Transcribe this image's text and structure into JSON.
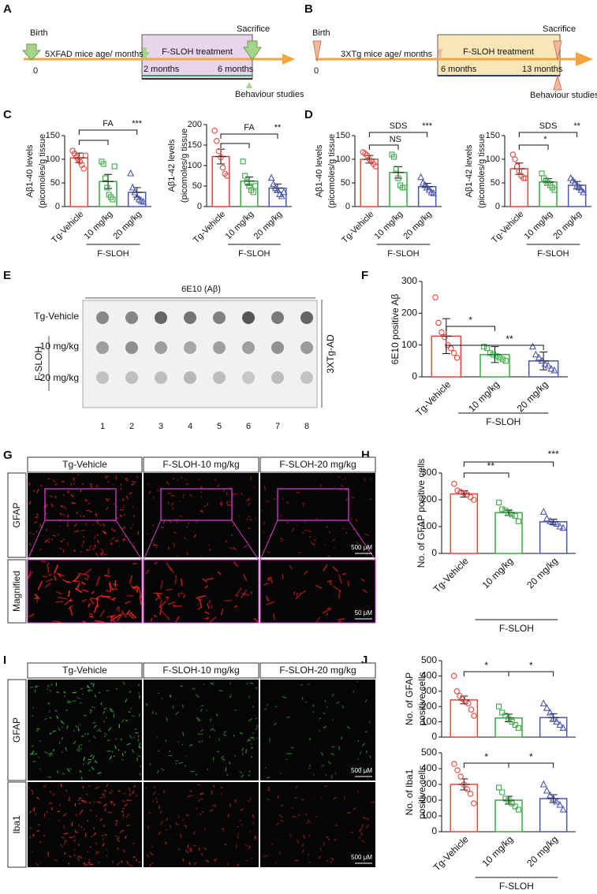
{
  "panel_labels": [
    "A",
    "B",
    "C",
    "D",
    "E",
    "F",
    "G",
    "H",
    "I",
    "J"
  ],
  "timeline_a": {
    "birth": "Birth",
    "axis_label": "5XFAD mice age/ months",
    "zero": "0",
    "treatment": "F-SLOH treatment",
    "start": "2 months",
    "end": "6 months",
    "sacrifice": "Sacrifice",
    "behaviour": "Behaviour studies"
  },
  "timeline_b": {
    "birth": "Birth",
    "axis_label": "3XTg mice age/ months",
    "zero": "0",
    "treatment": "F-SLOH treatment",
    "start": "6 months",
    "end": "13 months",
    "sacrifice": "Sacrifice",
    "behaviour": "Behaviour studies"
  },
  "dot_blot": {
    "antibody": "6E10 (Aβ)",
    "rows": [
      "Tg-Vehicle",
      "10 mg/kg",
      "20 mg/kg"
    ],
    "group": "F-SLOH",
    "model": "3XTg-AD",
    "lanes": [
      "1",
      "2",
      "3",
      "4",
      "5",
      "6",
      "7",
      "8"
    ]
  },
  "micrographs_g": {
    "columns": [
      "Tg-Vehicle",
      "F-SLOH-10 mg/kg",
      "F-SLOH-20 mg/kg"
    ],
    "rows": [
      "GFAP",
      "Magnified"
    ],
    "scale_bars": [
      "500 μM",
      "50 μM"
    ]
  },
  "micrographs_i": {
    "columns": [
      "Tg-Vehicle",
      "F-SLOH-10 mg/kg",
      "F-SLOH-20 mg/kg"
    ],
    "rows": [
      "GFAP",
      "Iba1"
    ],
    "scale_bars": [
      "500 μM",
      "500 μM"
    ]
  },
  "chart_data": [
    {
      "type": "bar",
      "y_label": [
        "Aβ1-40 levels",
        "(picomoles/g tissue"
      ],
      "categories": [
        "Tg-Vehicle",
        "10 mg/kg",
        "20 mg/kg"
      ],
      "group_label": "F-SLOH",
      "colors": [
        "#e8453c",
        "#3aaa45",
        "#4a56b0"
      ],
      "values": [
        103,
        53,
        30
      ],
      "errors": [
        10,
        15,
        10
      ],
      "points": [
        [
          118,
          112,
          105,
          100,
          95,
          88,
          80,
          108
        ],
        [
          95,
          90,
          60,
          40,
          25,
          20,
          15,
          85
        ],
        [
          70,
          40,
          30,
          20,
          15,
          12,
          10
        ]
      ],
      "ylim": [
        0,
        150
      ],
      "yticks": [
        0,
        50,
        100,
        150
      ],
      "annotations": [
        "FA",
        "***"
      ]
    },
    {
      "type": "bar",
      "y_label": [
        "Aβ1-42 levels",
        "(picomoles/g tissue"
      ],
      "categories": [
        "Tg-Vehicle",
        "10 mg/kg",
        "20 mg/kg"
      ],
      "group_label": "F-SLOH",
      "colors": [
        "#e8453c",
        "#3aaa45",
        "#4a56b0"
      ],
      "values": [
        122,
        62,
        45
      ],
      "errors": [
        18,
        10,
        10
      ],
      "points": [
        [
          185,
          160,
          135,
          120,
          95,
          80,
          75
        ],
        [
          110,
          75,
          60,
          50,
          40,
          35,
          50
        ],
        [
          70,
          55,
          45,
          40,
          30,
          25,
          35
        ]
      ],
      "ylim": [
        0,
        200
      ],
      "yticks": [
        0,
        50,
        100,
        150,
        200
      ],
      "annotations": [
        "FA",
        "**"
      ]
    },
    {
      "type": "bar",
      "y_label": [
        "Aβ1-40 levels",
        "(picomoles/g tissue"
      ],
      "categories": [
        "Tg-Vehicle",
        "10 mg/kg",
        "20 mg/kg"
      ],
      "group_label": "F-SLOH",
      "colors": [
        "#e8453c",
        "#3aaa45",
        "#4a56b0"
      ],
      "values": [
        100,
        72,
        42
      ],
      "errors": [
        8,
        12,
        7
      ],
      "points": [
        [
          115,
          112,
          108,
          100,
          95,
          90,
          85
        ],
        [
          110,
          105,
          80,
          60,
          45,
          40,
          40
        ],
        [
          62,
          50,
          45,
          40,
          35,
          30,
          28
        ]
      ],
      "ylim": [
        0,
        150
      ],
      "yticks": [
        0,
        50,
        100,
        150
      ],
      "annotations": [
        "SDS",
        "NS",
        "***"
      ]
    },
    {
      "type": "bar",
      "y_label": [
        "Aβ1-42 levels",
        "(picomoles/g tissue"
      ],
      "categories": [
        "Tg-Vehicle",
        "10 mg/kg",
        "20 mg/kg"
      ],
      "group_label": "F-SLOH",
      "colors": [
        "#e8453c",
        "#3aaa45",
        "#4a56b0"
      ],
      "values": [
        80,
        52,
        45
      ],
      "errors": [
        12,
        7,
        8
      ],
      "points": [
        [
          110,
          100,
          85,
          75,
          65,
          60,
          60
        ],
        [
          70,
          60,
          55,
          50,
          45,
          40,
          35
        ],
        [
          60,
          55,
          50,
          45,
          40,
          35,
          30
        ]
      ],
      "ylim": [
        0,
        150
      ],
      "yticks": [
        0,
        50,
        100,
        150
      ],
      "annotations": [
        "SDS",
        "*",
        "**"
      ]
    },
    {
      "type": "bar",
      "y_label": [
        "6E10 positive Aβ"
      ],
      "categories": [
        "Tg-Vehicle",
        "10 mg/kg",
        "20 mg/kg"
      ],
      "group_label": "F-SLOH",
      "colors": [
        "#e8453c",
        "#3aaa45",
        "#4a56b0"
      ],
      "values": [
        128,
        70,
        50
      ],
      "errors": [
        55,
        25,
        28
      ],
      "points": [
        [
          250,
          170,
          140,
          125,
          100,
          90,
          75,
          60
        ],
        [
          95,
          90,
          75,
          70,
          65,
          60,
          55,
          50
        ],
        [
          95,
          70,
          60,
          50,
          40,
          35,
          25,
          20
        ]
      ],
      "ylim": [
        0,
        300
      ],
      "yticks": [
        0,
        100,
        200,
        300
      ],
      "annotations": [
        "*",
        "**"
      ]
    },
    {
      "type": "bar",
      "y_label": [
        "No. of GFAP positive cells"
      ],
      "categories": [
        "Tg-Vehicle",
        "10 mg/kg",
        "20 mg/kg"
      ],
      "group_label": "F-SLOH",
      "colors": [
        "#e8453c",
        "#3aaa45",
        "#4a56b0"
      ],
      "values": [
        222,
        152,
        118
      ],
      "errors": [
        12,
        10,
        10
      ],
      "points": [
        [
          260,
          235,
          230,
          225,
          220,
          210,
          200
        ],
        [
          190,
          165,
          160,
          150,
          145,
          140,
          120
        ],
        [
          155,
          130,
          120,
          115,
          110,
          100,
          95
        ]
      ],
      "ylim": [
        0,
        300
      ],
      "yticks": [
        0,
        100,
        200,
        300
      ],
      "annotations": [
        "**",
        "***"
      ]
    },
    {
      "type": "bar",
      "y_label": [
        "No. of GFAP",
        "positive cells"
      ],
      "colors": [
        "#e8453c",
        "#3aaa45",
        "#4a56b0"
      ],
      "values": [
        243,
        125,
        128
      ],
      "errors": [
        25,
        25,
        25
      ],
      "points": [
        [
          400,
          300,
          270,
          250,
          230,
          220,
          180,
          140
        ],
        [
          200,
          160,
          140,
          120,
          100,
          80,
          60
        ],
        [
          220,
          190,
          160,
          120,
          100,
          80,
          60
        ]
      ],
      "ylim": [
        0,
        500
      ],
      "yticks": [
        0,
        100,
        200,
        300,
        400,
        500
      ],
      "annotations": [
        "*",
        "*"
      ]
    },
    {
      "type": "bar",
      "y_label": [
        "No. of Iba1",
        "positive cells"
      ],
      "categories": [
        "Tg-Vehicle",
        "10 mg/kg",
        "20 mg/kg"
      ],
      "group_label": "F-SLOH",
      "colors": [
        "#e8453c",
        "#3aaa45",
        "#4a56b0"
      ],
      "values": [
        300,
        200,
        210
      ],
      "errors": [
        35,
        25,
        25
      ],
      "points": [
        [
          430,
          390,
          350,
          300,
          270,
          240,
          180
        ],
        [
          280,
          250,
          210,
          200,
          180,
          160,
          140
        ],
        [
          300,
          260,
          230,
          210,
          190,
          170,
          140
        ]
      ],
      "ylim": [
        0,
        500
      ],
      "yticks": [
        0,
        100,
        200,
        300,
        400,
        500
      ],
      "annotations": [
        "*",
        "*"
      ]
    }
  ]
}
